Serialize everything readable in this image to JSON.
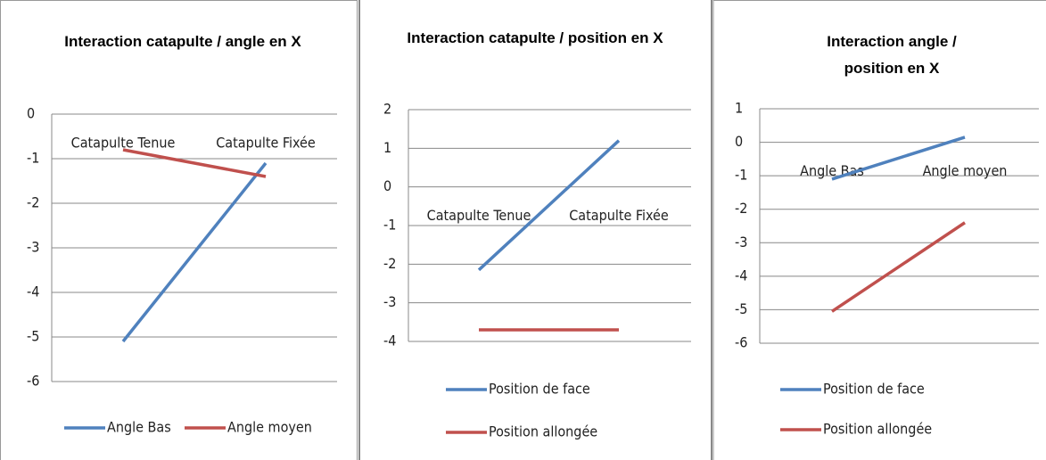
{
  "chart_data": [
    {
      "type": "line",
      "title": "Interaction catapulte / angle en X",
      "categories": [
        "Catapulte Tenue",
        "Catapulte Fixée"
      ],
      "series": [
        {
          "name": "Angle Bas",
          "color": "#4f81bd",
          "values": [
            -5.1,
            -1.1
          ]
        },
        {
          "name": "Angle moyen",
          "color": "#c0504d",
          "values": [
            -0.8,
            -1.4
          ]
        }
      ],
      "ylim": [
        -6,
        0
      ],
      "yticks": [
        0,
        -1,
        -2,
        -3,
        -4,
        -5,
        -6
      ],
      "grid": true,
      "legend": "bottom"
    },
    {
      "type": "line",
      "title": "Interaction catapulte / position en X",
      "categories": [
        "Catapulte Tenue",
        "Catapulte Fixée"
      ],
      "series": [
        {
          "name": "Position de face",
          "color": "#4f81bd",
          "values": [
            -2.15,
            1.2
          ]
        },
        {
          "name": "Position allongée",
          "color": "#c0504d",
          "values": [
            -3.7,
            -3.7
          ]
        }
      ],
      "ylim": [
        -4,
        2
      ],
      "yticks": [
        2,
        1,
        0,
        -1,
        -2,
        -3,
        -4
      ],
      "grid": true,
      "legend": "bottom"
    },
    {
      "type": "line",
      "title": "Interaction angle / position en X",
      "categories": [
        "Angle Bas",
        "Angle moyen"
      ],
      "series": [
        {
          "name": "Position de face",
          "color": "#4f81bd",
          "values": [
            -1.1,
            0.15
          ]
        },
        {
          "name": "Position allongée",
          "color": "#c0504d",
          "values": [
            -5.05,
            -2.4
          ]
        }
      ],
      "ylim": [
        -6,
        1
      ],
      "yticks": [
        1,
        0,
        -1,
        -2,
        -3,
        -4,
        -5,
        -6
      ],
      "grid": true,
      "legend": "bottom"
    }
  ]
}
